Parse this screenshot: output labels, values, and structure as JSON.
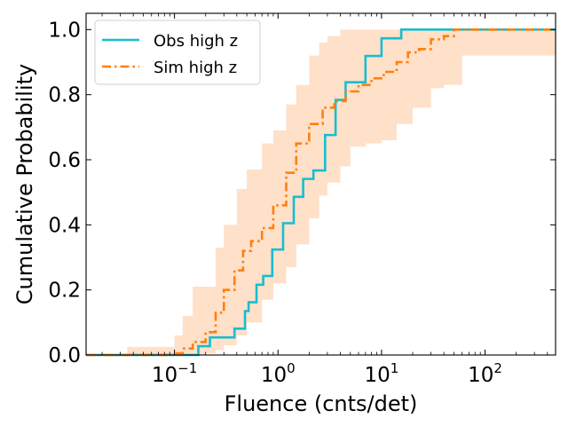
{
  "chart_data": {
    "type": "line",
    "title": "",
    "xlabel": "Fluence (cnts/det)",
    "ylabel": "Cumulative Probability",
    "xscale": "log",
    "xlim": [
      0.014,
      480
    ],
    "ylim": [
      0.0,
      1.05
    ],
    "x_tick_labels": [
      {
        "value": 0.1,
        "base": "10",
        "exp": "−1"
      },
      {
        "value": 1,
        "base": "10",
        "exp": "0"
      },
      {
        "value": 10,
        "base": "10",
        "exp": "1"
      },
      {
        "value": 100,
        "base": "10",
        "exp": "2"
      }
    ],
    "y_ticks": [
      0.0,
      0.2,
      0.4,
      0.6,
      0.8,
      1.0
    ],
    "y_tick_labels": [
      "0.0",
      "0.2",
      "0.4",
      "0.6",
      "0.8",
      "1.0"
    ],
    "legend": {
      "position": "top-left"
    },
    "series": [
      {
        "name": "Obs high z",
        "color": "#17becf",
        "style": "solid",
        "step": true,
        "x": [
          0.014,
          0.17,
          0.22,
          0.38,
          0.48,
          0.52,
          0.62,
          0.72,
          0.88,
          1.12,
          1.42,
          1.75,
          2.2,
          2.85,
          3.6,
          4.5,
          5.5,
          7.0,
          10.0,
          15.5,
          480
        ],
        "y": [
          0.0,
          0.027,
          0.054,
          0.081,
          0.135,
          0.162,
          0.216,
          0.243,
          0.324,
          0.405,
          0.486,
          0.541,
          0.567,
          0.676,
          0.784,
          0.838,
          0.838,
          0.919,
          0.973,
          1.0,
          1.0
        ]
      },
      {
        "name": "Sim high z",
        "color": "#ff7f0e",
        "style": "dashdot",
        "step": true,
        "x": [
          0.014,
          0.1,
          0.12,
          0.15,
          0.2,
          0.25,
          0.3,
          0.38,
          0.46,
          0.55,
          0.7,
          0.9,
          1.2,
          1.5,
          2.0,
          2.7,
          3.5,
          4.5,
          6.0,
          8.0,
          10.5,
          14.0,
          18.0,
          23.0,
          30.0,
          40.0,
          50.0,
          480
        ],
        "y": [
          0.0,
          0.005,
          0.02,
          0.04,
          0.07,
          0.13,
          0.2,
          0.26,
          0.32,
          0.35,
          0.39,
          0.46,
          0.56,
          0.65,
          0.71,
          0.76,
          0.78,
          0.81,
          0.83,
          0.85,
          0.87,
          0.9,
          0.93,
          0.94,
          0.97,
          0.98,
          1.0,
          1.0
        ]
      }
    ],
    "band": {
      "name": "Sim high z spread",
      "color": "#ffdbbf",
      "x": [
        0.014,
        0.03,
        0.035,
        0.05,
        0.07,
        0.1,
        0.12,
        0.15,
        0.2,
        0.25,
        0.3,
        0.4,
        0.5,
        0.7,
        0.9,
        1.2,
        1.5,
        2.0,
        2.5,
        3.0,
        4.0,
        5.0,
        7.0,
        10.0,
        14.0,
        20.0,
        30.0,
        40.0,
        60.0,
        480
      ],
      "lower": [
        0.0,
        0.0,
        0.0,
        0.0,
        0.0,
        0.0,
        0.0,
        0.0,
        0.005,
        0.015,
        0.03,
        0.06,
        0.1,
        0.17,
        0.22,
        0.27,
        0.34,
        0.42,
        0.49,
        0.53,
        0.58,
        0.64,
        0.65,
        0.66,
        0.71,
        0.76,
        0.82,
        0.83,
        0.92,
        1.0
      ],
      "upper": [
        0.0,
        0.0,
        0.025,
        0.025,
        0.025,
        0.06,
        0.12,
        0.21,
        0.21,
        0.33,
        0.4,
        0.51,
        0.57,
        0.65,
        0.69,
        0.77,
        0.83,
        0.92,
        0.96,
        0.98,
        1.0,
        1.0,
        1.0,
        1.0,
        1.0,
        1.0,
        1.0,
        1.0,
        1.0,
        1.0
      ]
    }
  }
}
